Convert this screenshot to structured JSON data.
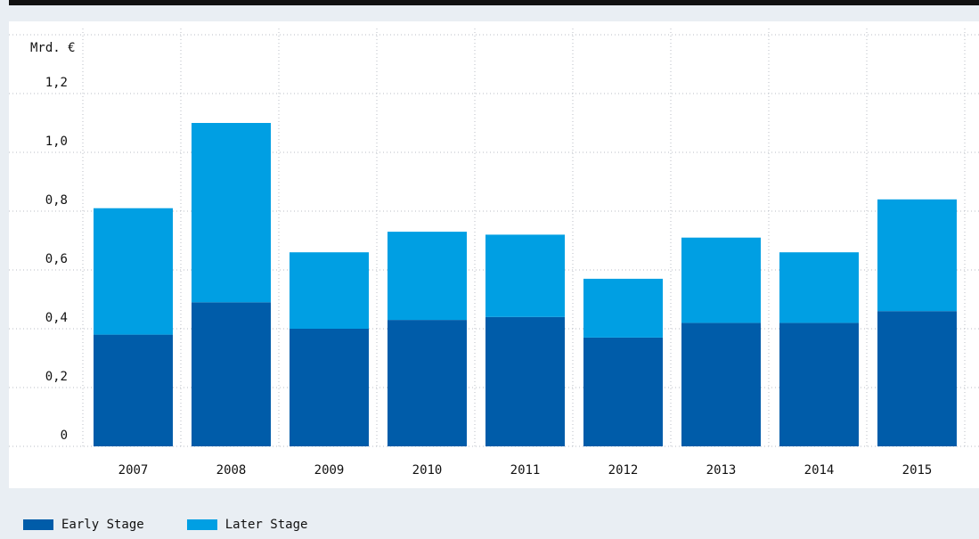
{
  "chart_data": {
    "type": "bar",
    "stacked": true,
    "ylabel": "Mrd. €",
    "categories": [
      "2007",
      "2008",
      "2009",
      "2010",
      "2011",
      "2012",
      "2013",
      "2014",
      "2015"
    ],
    "series": [
      {
        "name": "Early Stage",
        "color": "#005ca9",
        "values": [
          0.38,
          0.49,
          0.4,
          0.43,
          0.44,
          0.37,
          0.42,
          0.42,
          0.46
        ]
      },
      {
        "name": "Later Stage",
        "color": "#009fe3",
        "values": [
          0.43,
          0.61,
          0.26,
          0.3,
          0.28,
          0.2,
          0.29,
          0.24,
          0.38
        ]
      }
    ],
    "yticks": [
      {
        "value": 0,
        "label": "0"
      },
      {
        "value": 0.2,
        "label": "0,2"
      },
      {
        "value": 0.4,
        "label": "0,4"
      },
      {
        "value": 0.6,
        "label": "0,6"
      },
      {
        "value": 0.8,
        "label": "0,8"
      },
      {
        "value": 1.0,
        "label": "1,0"
      },
      {
        "value": 1.2,
        "label": "1,2"
      }
    ],
    "ylim": [
      0,
      1.4
    ],
    "grid": true,
    "legend_position": "bottom-left"
  }
}
